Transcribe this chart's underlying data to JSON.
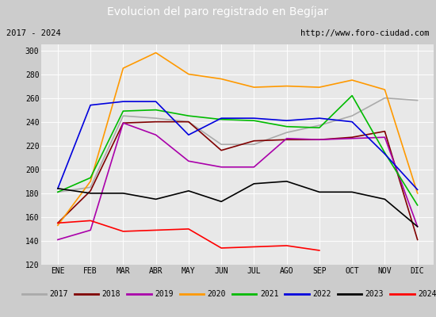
{
  "title": "Evolucion del paro registrado en Begíjar",
  "subtitle_left": "2017 - 2024",
  "subtitle_right": "http://www.foro-ciudad.com",
  "months": [
    "ENE",
    "FEB",
    "MAR",
    "ABR",
    "MAY",
    "JUN",
    "JUL",
    "AGO",
    "SEP",
    "OCT",
    "NOV",
    "DIC"
  ],
  "series": {
    "2017": {
      "color": "#aaaaaa",
      "values": [
        181,
        185,
        245,
        243,
        240,
        221,
        221,
        231,
        237,
        245,
        260,
        258
      ]
    },
    "2018": {
      "color": "#800000",
      "values": [
        155,
        182,
        239,
        240,
        240,
        216,
        224,
        225,
        225,
        227,
        232,
        141
      ]
    },
    "2019": {
      "color": "#aa00aa",
      "values": [
        141,
        149,
        239,
        229,
        207,
        202,
        202,
        226,
        225,
        226,
        227,
        152
      ]
    },
    "2020": {
      "color": "#ff9900",
      "values": [
        153,
        190,
        285,
        298,
        280,
        276,
        269,
        270,
        269,
        275,
        267,
        180
      ]
    },
    "2021": {
      "color": "#00bb00",
      "values": [
        181,
        193,
        249,
        250,
        245,
        242,
        241,
        236,
        235,
        262,
        214,
        170
      ]
    },
    "2022": {
      "color": "#0000dd",
      "values": [
        184,
        254,
        257,
        257,
        229,
        243,
        243,
        241,
        243,
        240,
        213,
        183
      ]
    },
    "2023": {
      "color": "#000000",
      "values": [
        184,
        180,
        180,
        175,
        182,
        173,
        188,
        190,
        181,
        181,
        175,
        152
      ]
    },
    "2024": {
      "color": "#ff0000",
      "values": [
        155,
        157,
        148,
        149,
        150,
        134,
        135,
        136,
        132,
        null,
        null,
        null
      ]
    }
  },
  "ylim": [
    120,
    305
  ],
  "yticks": [
    120,
    140,
    160,
    180,
    200,
    220,
    240,
    260,
    280,
    300
  ],
  "fig_bg": "#cccccc",
  "plot_bg": "#e8e8e8",
  "title_bg": "#5588cc",
  "title_color": "white",
  "header_bg": "white",
  "header_border_color": "#8888cc",
  "legend_bg": "white",
  "legend_border_color": "#8888cc"
}
